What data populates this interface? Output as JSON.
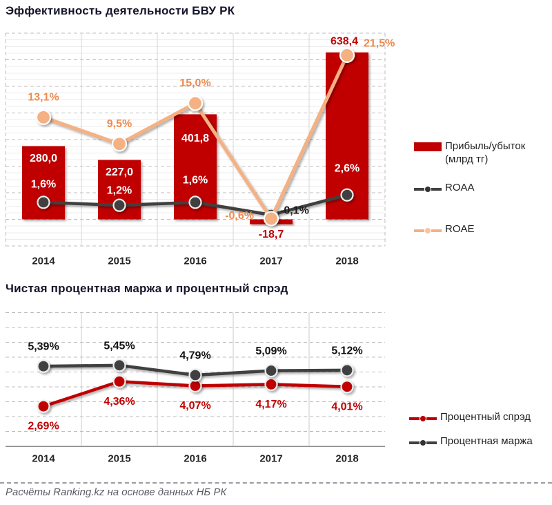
{
  "source_note": "Расчёты Ranking.kz на основе данных НБ РК",
  "chart_data": [
    {
      "id": "chart1",
      "type": "bar",
      "title": "Эффективность деятельности БВУ РК",
      "categories": [
        "2014",
        "2015",
        "2016",
        "2017",
        "2018"
      ],
      "series": [
        {
          "name": "Прибыль/убыток (млрд тг)",
          "type": "bar",
          "axis": "primary_billions_tenge",
          "color": "#C00000",
          "values": [
            280.0,
            227.0,
            401.8,
            -18.7,
            638.4
          ],
          "labels": [
            "280,0",
            "227,0",
            "401,8",
            "-18,7",
            "638,4"
          ],
          "label_placement": [
            "inside-top",
            "inside-top",
            "inside-top-low",
            "below",
            "above"
          ],
          "label_color_inside": "#FFFFFF",
          "label_color_outside": "#C00000"
        },
        {
          "name": "ROAA",
          "type": "line",
          "axis": "secondary_percent",
          "color": "#404040",
          "values": [
            1.6,
            1.2,
            1.6,
            -0.1,
            2.6
          ],
          "labels": [
            "1,6%",
            "1,2%",
            "1,6%",
            "-0,1%",
            "2,6%"
          ],
          "label_placement": [
            "above",
            "above-low",
            "above-high",
            "right",
            "above-higher"
          ],
          "label_colors": [
            "#FFFFFF",
            "#FFFFFF",
            "#FFFFFF",
            "#1A1A1A",
            "#FFFFFF"
          ]
        },
        {
          "name": "ROAE",
          "type": "line",
          "axis": "secondary_percent",
          "color": "#F4B183",
          "values": [
            13.1,
            9.5,
            15.0,
            -0.6,
            21.5
          ],
          "labels": [
            "13,1%",
            "9,5%",
            "15,0%",
            "-0,6%",
            "21,5%"
          ],
          "label_placement": [
            "above",
            "above",
            "above",
            "left",
            "top-right"
          ],
          "label_color": "#ED8B50"
        }
      ],
      "axes": {
        "primary": {
          "unit": "млрд тг",
          "tick_labels_visible": false,
          "range_hint": [
            -100,
            700
          ],
          "major_step": 100
        },
        "secondary": {
          "unit": "%",
          "tick_labels_visible": false
        }
      },
      "grid": {
        "horizontal_major": "dashed",
        "horizontal_minor": "solid",
        "vertical_separators": "solid"
      },
      "legend_position": "right"
    },
    {
      "id": "chart2",
      "type": "line",
      "title": "Чистая процентная маржа и процентный спрэд",
      "categories": [
        "2014",
        "2015",
        "2016",
        "2017",
        "2018"
      ],
      "series": [
        {
          "name": "Процентный спрэд",
          "type": "line",
          "color": "#C00000",
          "values": [
            2.69,
            4.36,
            4.07,
            4.17,
            4.01
          ],
          "labels": [
            "2,69%",
            "4,36%",
            "4,07%",
            "4,17%",
            "4,01%"
          ],
          "label_placement": "below",
          "label_color": "#C00000"
        },
        {
          "name": "Процентная маржа",
          "type": "line",
          "color": "#404040",
          "values": [
            5.39,
            5.45,
            4.79,
            5.09,
            5.12
          ],
          "labels": [
            "5,39%",
            "5,45%",
            "4,79%",
            "5,09%",
            "5,12%"
          ],
          "label_placement": "above",
          "label_color": "#111111"
        }
      ],
      "axes": {
        "y": {
          "range": [
            0,
            9
          ],
          "gridline_step": 1,
          "style": "dashed",
          "tick_labels_visible": false
        }
      },
      "grid": {
        "horizontal": "dashed",
        "vertical_separators": "solid",
        "bottom_axis": "solid"
      },
      "legend_position": "right"
    }
  ],
  "colors": {
    "bar_red": "#C00000",
    "line_dark": "#404040",
    "line_peach": "#F4B183",
    "roae_label_orange": "#ED8B50",
    "title_text": "#15152b",
    "axis_label_text": "#262626",
    "footer_text": "#5b5b66"
  }
}
